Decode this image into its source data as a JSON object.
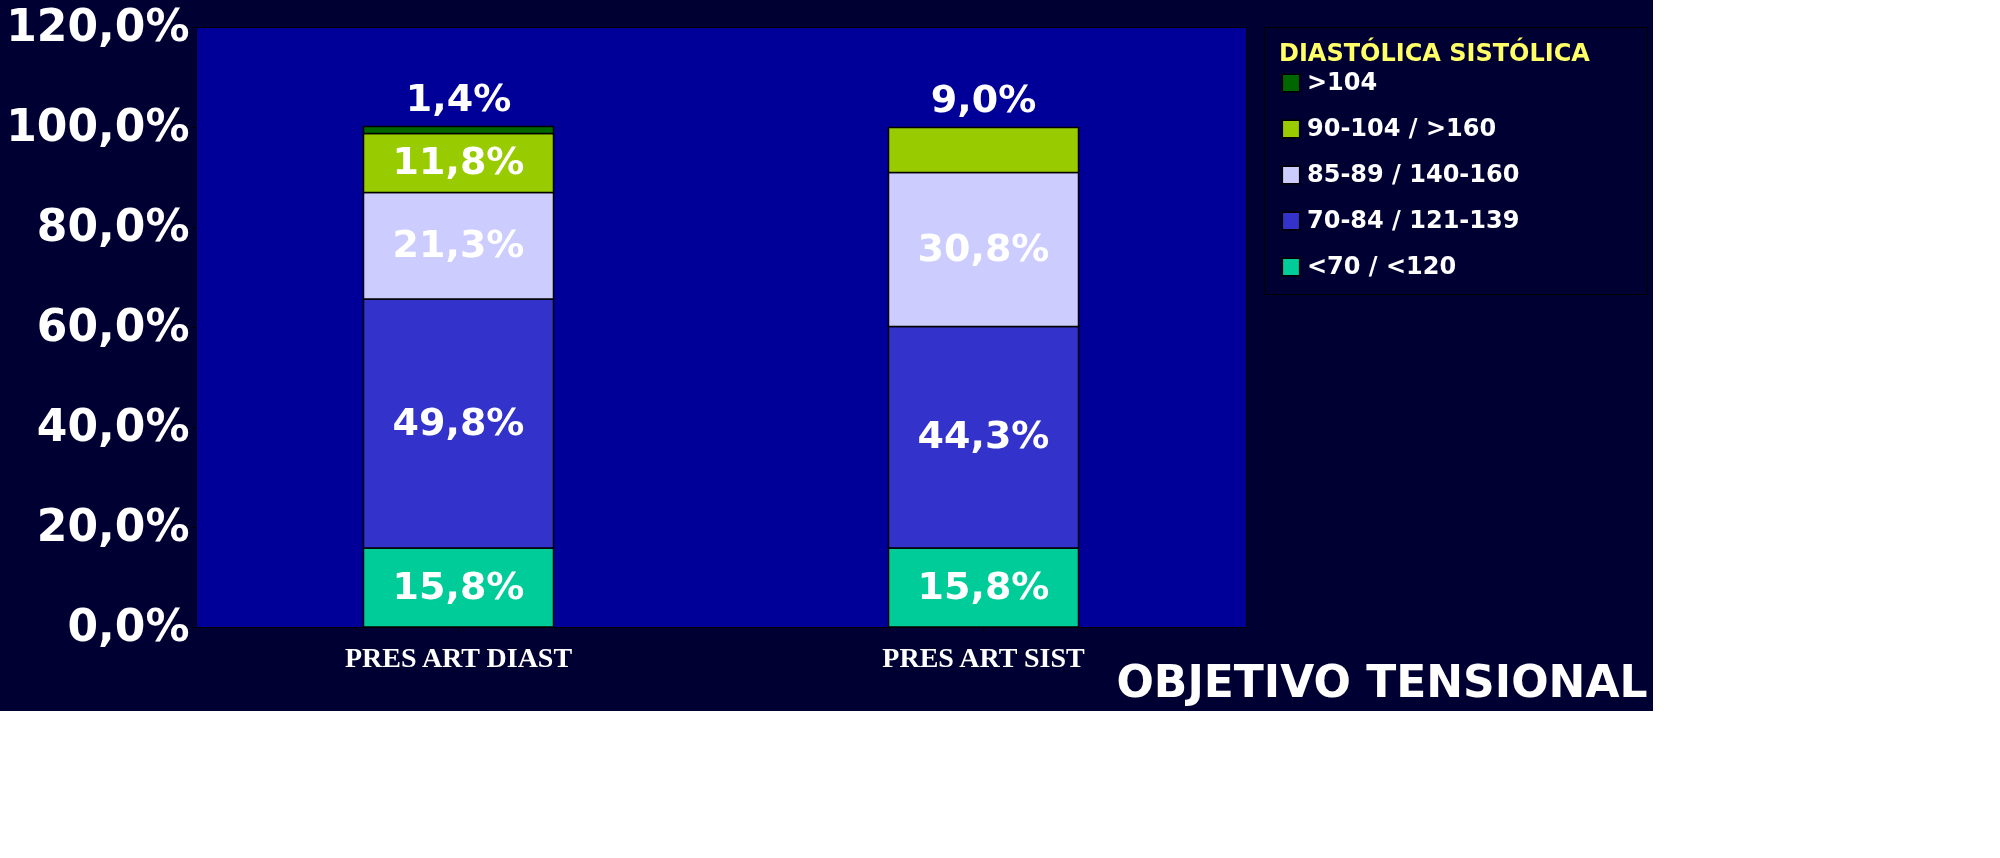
{
  "chart_data": {
    "type": "bar",
    "stacked": true,
    "categories": [
      "PRES ART DIAST",
      "PRES ART SIST"
    ],
    "series": [
      {
        "name": "<70 / <120",
        "color": "#00cc99",
        "values": [
          15.8,
          15.8
        ],
        "value_labels": [
          "15,8%",
          "15,8%"
        ]
      },
      {
        "name": "70-84 / 121-139",
        "color": "#3333cc",
        "values": [
          49.8,
          44.3
        ],
        "value_labels": [
          "49,8%",
          "44,3%"
        ]
      },
      {
        "name": "85-89 / 140-160",
        "color": "#ccccff",
        "values": [
          21.3,
          30.8
        ],
        "value_labels": [
          "21,3%",
          "30,8%"
        ]
      },
      {
        "name": "90-104 / >160",
        "color": "#99cc00",
        "values": [
          11.8,
          9.0
        ],
        "value_labels": [
          "11,8%",
          "9,0%"
        ]
      },
      {
        "name": ">104",
        "color": "#006600",
        "values": [
          1.4,
          null
        ],
        "value_labels": [
          "1,4%",
          null
        ]
      }
    ],
    "ylim": [
      0,
      120
    ],
    "yticks": [
      {
        "value": 0,
        "label": "0,0%"
      },
      {
        "value": 20,
        "label": "20,0%"
      },
      {
        "value": 40,
        "label": "40,0%"
      },
      {
        "value": 60,
        "label": "60,0%"
      },
      {
        "value": 80,
        "label": "80,0%"
      },
      {
        "value": 100,
        "label": "100,0%"
      },
      {
        "value": 120,
        "label": "120,0%"
      }
    ],
    "legend_title": "DIASTÓLICA      SISTÓLICA",
    "legend": "right",
    "grid": false,
    "annotations": [
      "OBJETIVO TENSIONAL"
    ]
  }
}
